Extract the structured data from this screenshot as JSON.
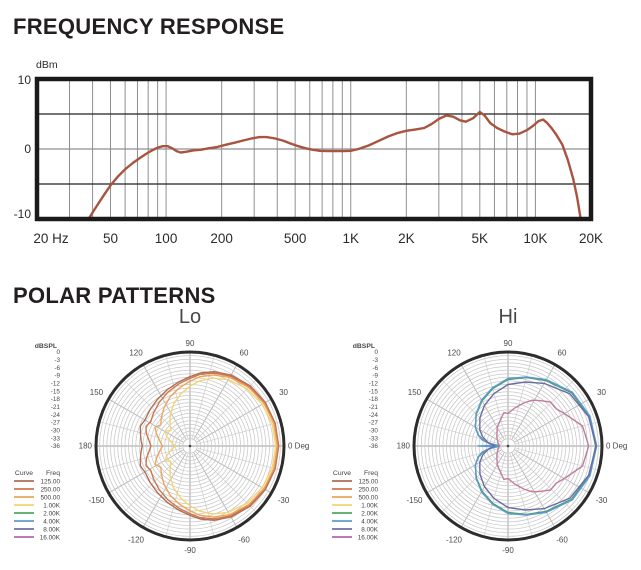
{
  "header": {
    "frequency_title": "FREQUENCY RESPONSE",
    "polar_title": "POLAR PATTERNS",
    "lo_label": "Lo",
    "hi_label": "Hi"
  },
  "colors": {
    "title_text": "#231f20",
    "axis_text": "#2b2b2b",
    "small_text": "#4a4a4a",
    "frame": "#1a1a1a",
    "grid_gray": "#8f8f8f",
    "ring_gray": "#c8c8c8",
    "fr_curve": "#a8543f"
  },
  "chart_data": [
    {
      "type": "line",
      "title": "FREQUENCY RESPONSE",
      "ylabel": "dBm",
      "xlabel": "",
      "xscale": "log",
      "xlim": [
        20,
        20000
      ],
      "ylim": [
        -10,
        10
      ],
      "grid": true,
      "yticks": [
        {
          "v": 10,
          "label": "10"
        },
        {
          "v": 0,
          "label": "0"
        },
        {
          "v": -10,
          "label": "-10"
        }
      ],
      "hlines": [
        {
          "v": 5,
          "color": "#222222"
        },
        {
          "v": 0,
          "color": "#8f8f8f"
        },
        {
          "v": -5,
          "color": "#222222"
        }
      ],
      "grid_freqs": [
        30,
        40,
        50,
        60,
        70,
        80,
        90,
        100,
        200,
        300,
        400,
        500,
        600,
        700,
        800,
        900,
        1000,
        2000,
        3000,
        4000,
        5000,
        6000,
        7000,
        8000,
        9000,
        10000
      ],
      "xticks": [
        {
          "v": 20,
          "label": "20 Hz"
        },
        {
          "v": 50,
          "label": "50"
        },
        {
          "v": 100,
          "label": "100"
        },
        {
          "v": 200,
          "label": "200"
        },
        {
          "v": 500,
          "label": "500"
        },
        {
          "v": 1000,
          "label": "1K"
        },
        {
          "v": 2000,
          "label": "2K"
        },
        {
          "v": 5000,
          "label": "5K"
        },
        {
          "v": 10000,
          "label": "10K"
        },
        {
          "v": 20000,
          "label": "20K"
        }
      ],
      "line_color": "#a8543f",
      "points": [
        [
          38,
          -10
        ],
        [
          42,
          -8.2
        ],
        [
          46,
          -6.6
        ],
        [
          50,
          -5.2
        ],
        [
          55,
          -3.9
        ],
        [
          60,
          -2.9
        ],
        [
          66,
          -2.0
        ],
        [
          72,
          -1.3
        ],
        [
          78,
          -0.7
        ],
        [
          84,
          -0.2
        ],
        [
          90,
          0.2
        ],
        [
          96,
          0.4
        ],
        [
          102,
          0.4
        ],
        [
          108,
          0.1
        ],
        [
          114,
          -0.3
        ],
        [
          120,
          -0.5
        ],
        [
          128,
          -0.4
        ],
        [
          140,
          -0.2
        ],
        [
          155,
          -0.1
        ],
        [
          170,
          0.1
        ],
        [
          190,
          0.3
        ],
        [
          210,
          0.6
        ],
        [
          235,
          0.9
        ],
        [
          260,
          1.2
        ],
        [
          290,
          1.5
        ],
        [
          320,
          1.7
        ],
        [
          350,
          1.7
        ],
        [
          390,
          1.5
        ],
        [
          430,
          1.2
        ],
        [
          470,
          0.8
        ],
        [
          520,
          0.4
        ],
        [
          570,
          0.1
        ],
        [
          620,
          -0.1
        ],
        [
          680,
          -0.25
        ],
        [
          750,
          -0.3
        ],
        [
          830,
          -0.3
        ],
        [
          920,
          -0.3
        ],
        [
          1000,
          -0.25
        ],
        [
          1100,
          0
        ],
        [
          1250,
          0.5
        ],
        [
          1400,
          1.1
        ],
        [
          1600,
          1.8
        ],
        [
          1800,
          2.3
        ],
        [
          2000,
          2.6
        ],
        [
          2250,
          2.8
        ],
        [
          2500,
          3.0
        ],
        [
          2750,
          3.6
        ],
        [
          3000,
          4.3
        ],
        [
          3300,
          4.8
        ],
        [
          3600,
          4.6
        ],
        [
          3900,
          4.1
        ],
        [
          4200,
          3.9
        ],
        [
          4600,
          4.4
        ],
        [
          5000,
          5.3
        ],
        [
          5300,
          4.8
        ],
        [
          5700,
          3.7
        ],
        [
          6200,
          3.0
        ],
        [
          6800,
          2.5
        ],
        [
          7500,
          2.1
        ],
        [
          8200,
          2.2
        ],
        [
          9000,
          2.7
        ],
        [
          9700,
          3.3
        ],
        [
          10400,
          4.0
        ],
        [
          11000,
          4.2
        ],
        [
          11600,
          3.7
        ],
        [
          12300,
          2.9
        ],
        [
          13000,
          2.0
        ],
        [
          14000,
          0.6
        ],
        [
          15000,
          -1.6
        ],
        [
          16000,
          -4.2
        ],
        [
          16800,
          -6.8
        ],
        [
          17600,
          -10
        ]
      ]
    },
    {
      "type": "polar",
      "title": "Lo",
      "r_unit": "dBSPL",
      "r_ticks": [
        0,
        -3,
        -6,
        -9,
        -12,
        -15,
        -18,
        -21,
        -24,
        -27,
        -30,
        -33,
        -36
      ],
      "ring_step_db": 1.5,
      "r_center_db": -39,
      "angle_labels": [
        {
          "deg": 90,
          "label": "90"
        },
        {
          "deg": 60,
          "label": "60"
        },
        {
          "deg": 30,
          "label": "30"
        },
        {
          "deg": 0,
          "label": "0 Deg"
        },
        {
          "deg": -30,
          "label": "-30"
        },
        {
          "deg": -60,
          "label": "-60"
        },
        {
          "deg": -90,
          "label": "-90"
        },
        {
          "deg": -120,
          "label": "-120"
        },
        {
          "deg": -150,
          "label": "-150"
        },
        {
          "deg": 180,
          "label": "180"
        },
        {
          "deg": 150,
          "label": "150"
        },
        {
          "deg": 120,
          "label": "120"
        }
      ],
      "legend": {
        "col1": "Curve",
        "col2": "Freq",
        "entries": [
          {
            "freq": "125.00",
            "color": "#ad6e55"
          },
          {
            "freq": "250.00",
            "color": "#d0764c"
          },
          {
            "freq": "500.00",
            "color": "#eca45c"
          },
          {
            "freq": "1.00K",
            "color": "#f2d574"
          },
          {
            "freq": "2.00K",
            "color": "#55a56a"
          },
          {
            "freq": "4.00K",
            "color": "#5b9bd1"
          },
          {
            "freq": "8.00K",
            "color": "#6e6ea6"
          },
          {
            "freq": "16.00K",
            "color": "#b069a6"
          }
        ]
      },
      "series": [
        {
          "name": "125.00",
          "color": "#ad6e55",
          "points": [
            [
              0,
              -2.2
            ],
            [
              15,
              -2.4
            ],
            [
              30,
              -2.9
            ],
            [
              45,
              -3.7
            ],
            [
              60,
              -5.0
            ],
            [
              72,
              -6.6
            ],
            [
              82,
              -8.4
            ],
            [
              90,
              -10.2
            ],
            [
              100,
              -12.0
            ],
            [
              112,
              -13.8
            ],
            [
              125,
              -15.4
            ],
            [
              138,
              -16.6
            ],
            [
              150,
              -17.4
            ],
            [
              158,
              -16.8
            ],
            [
              166,
              -17.8
            ],
            [
              174,
              -18.6
            ],
            [
              180,
              -19.2
            ]
          ]
        },
        {
          "name": "250.00",
          "color": "#d0764c",
          "points": [
            [
              0,
              -2.4
            ],
            [
              15,
              -2.6
            ],
            [
              30,
              -3.2
            ],
            [
              45,
              -4.1
            ],
            [
              60,
              -5.5
            ],
            [
              72,
              -7.2
            ],
            [
              82,
              -9.0
            ],
            [
              90,
              -10.9
            ],
            [
              100,
              -12.8
            ],
            [
              112,
              -14.8
            ],
            [
              125,
              -16.8
            ],
            [
              138,
              -18.6
            ],
            [
              148,
              -19.8
            ],
            [
              156,
              -19.0
            ],
            [
              164,
              -20.2
            ],
            [
              172,
              -21.8
            ],
            [
              180,
              -22.8
            ]
          ]
        },
        {
          "name": "500.00",
          "color": "#eca45c",
          "points": [
            [
              0,
              -2.8
            ],
            [
              15,
              -3.0
            ],
            [
              30,
              -3.6
            ],
            [
              45,
              -4.6
            ],
            [
              60,
              -6.1
            ],
            [
              72,
              -8.0
            ],
            [
              82,
              -10.0
            ],
            [
              90,
              -12.1
            ],
            [
              100,
              -14.4
            ],
            [
              112,
              -17.0
            ],
            [
              124,
              -19.8
            ],
            [
              135,
              -22.2
            ],
            [
              144,
              -24.0
            ],
            [
              152,
              -22.6
            ],
            [
              160,
              -24.2
            ],
            [
              170,
              -26.2
            ],
            [
              180,
              -27.6
            ]
          ]
        },
        {
          "name": "1.00K",
          "color": "#f2d574",
          "points": [
            [
              0,
              -3.4
            ],
            [
              15,
              -3.7
            ],
            [
              30,
              -4.4
            ],
            [
              45,
              -5.5
            ],
            [
              60,
              -7.2
            ],
            [
              72,
              -9.4
            ],
            [
              82,
              -11.8
            ],
            [
              90,
              -14.2
            ],
            [
              100,
              -17.0
            ],
            [
              111,
              -20.2
            ],
            [
              122,
              -23.6
            ],
            [
              132,
              -26.6
            ],
            [
              141,
              -28.8
            ],
            [
              149,
              -27.0
            ],
            [
              157,
              -28.4
            ],
            [
              167,
              -30.8
            ],
            [
              180,
              -33.0
            ]
          ]
        }
      ]
    },
    {
      "type": "polar",
      "title": "Hi",
      "r_unit": "dBSPL",
      "r_ticks": [
        0,
        -3,
        -6,
        -9,
        -12,
        -15,
        -18,
        -21,
        -24,
        -27,
        -30,
        -33,
        -36
      ],
      "ring_step_db": 1.5,
      "r_center_db": -39,
      "angle_labels": [
        {
          "deg": 90,
          "label": "90"
        },
        {
          "deg": 60,
          "label": "60"
        },
        {
          "deg": 30,
          "label": "30"
        },
        {
          "deg": 0,
          "label": "0 Deg"
        },
        {
          "deg": -30,
          "label": "-30"
        },
        {
          "deg": -60,
          "label": "-60"
        },
        {
          "deg": -90,
          "label": "-90"
        },
        {
          "deg": -120,
          "label": "-120"
        },
        {
          "deg": -150,
          "label": "-150"
        },
        {
          "deg": 180,
          "label": "180"
        },
        {
          "deg": 150,
          "label": "150"
        },
        {
          "deg": 120,
          "label": "120"
        }
      ],
      "legend": {
        "col1": "Curve",
        "col2": "Freq",
        "entries": [
          {
            "freq": "125.00",
            "color": "#ad6e55"
          },
          {
            "freq": "250.00",
            "color": "#d0764c"
          },
          {
            "freq": "500.00",
            "color": "#eca45c"
          },
          {
            "freq": "1.00K",
            "color": "#f2d574"
          },
          {
            "freq": "2.00K",
            "color": "#55a56a"
          },
          {
            "freq": "4.00K",
            "color": "#5b9bd1"
          },
          {
            "freq": "8.00K",
            "color": "#6e6ea6"
          },
          {
            "freq": "16.00K",
            "color": "#b069a6"
          }
        ]
      },
      "series": [
        {
          "name": "2.00K",
          "color": "#4ea06a",
          "points": [
            [
              0,
              -2.6
            ],
            [
              20,
              -3.2
            ],
            [
              40,
              -4.6
            ],
            [
              60,
              -7.6
            ],
            [
              75,
              -9.6
            ],
            [
              90,
              -11.4
            ],
            [
              105,
              -14.4
            ],
            [
              120,
              -17.4
            ],
            [
              135,
              -20.4
            ],
            [
              150,
              -23.4
            ],
            [
              160,
              -26.0
            ],
            [
              168,
              -29.0
            ],
            [
              173,
              -32.0
            ],
            [
              177,
              -35.0
            ],
            [
              180,
              -29.5
            ]
          ]
        },
        {
          "name": "4.00K",
          "color": "#5b9bd1",
          "points": [
            [
              0,
              -2.2
            ],
            [
              20,
              -2.8
            ],
            [
              40,
              -4.2
            ],
            [
              60,
              -7.2
            ],
            [
              75,
              -9.3
            ],
            [
              90,
              -11.0
            ],
            [
              105,
              -14.0
            ],
            [
              120,
              -17.0
            ],
            [
              135,
              -20.2
            ],
            [
              150,
              -23.4
            ],
            [
              160,
              -25.8
            ],
            [
              167,
              -28.0
            ],
            [
              172,
              -31.0
            ],
            [
              176,
              -34.5
            ],
            [
              180,
              -26.5
            ]
          ]
        },
        {
          "name": "8.00K",
          "color": "#6b6ba3",
          "points": [
            [
              0,
              -2.4
            ],
            [
              20,
              -3.4
            ],
            [
              40,
              -5.4
            ],
            [
              60,
              -9.0
            ],
            [
              75,
              -11.5
            ],
            [
              90,
              -13.5
            ],
            [
              105,
              -16.5
            ],
            [
              120,
              -19.5
            ],
            [
              135,
              -22.5
            ],
            [
              150,
              -25.5
            ],
            [
              160,
              -27.8
            ],
            [
              170,
              -30.5
            ],
            [
              180,
              -33.5
            ]
          ]
        },
        {
          "name": "16.00K",
          "color": "#c07d9d",
          "points": [
            [
              0,
              -5.5
            ],
            [
              15,
              -7.0
            ],
            [
              30,
              -12.0
            ],
            [
              38,
              -13.8
            ],
            [
              46,
              -13.6
            ],
            [
              55,
              -16.0
            ],
            [
              62,
              -17.5
            ],
            [
              70,
              -20.0
            ],
            [
              80,
              -23.0
            ],
            [
              90,
              -25.5
            ],
            [
              97,
              -25.0
            ],
            [
              105,
              -27.5
            ],
            [
              120,
              -30.0
            ],
            [
              140,
              -33.0
            ],
            [
              160,
              -34.5
            ],
            [
              180,
              -35.5
            ]
          ]
        }
      ]
    }
  ]
}
